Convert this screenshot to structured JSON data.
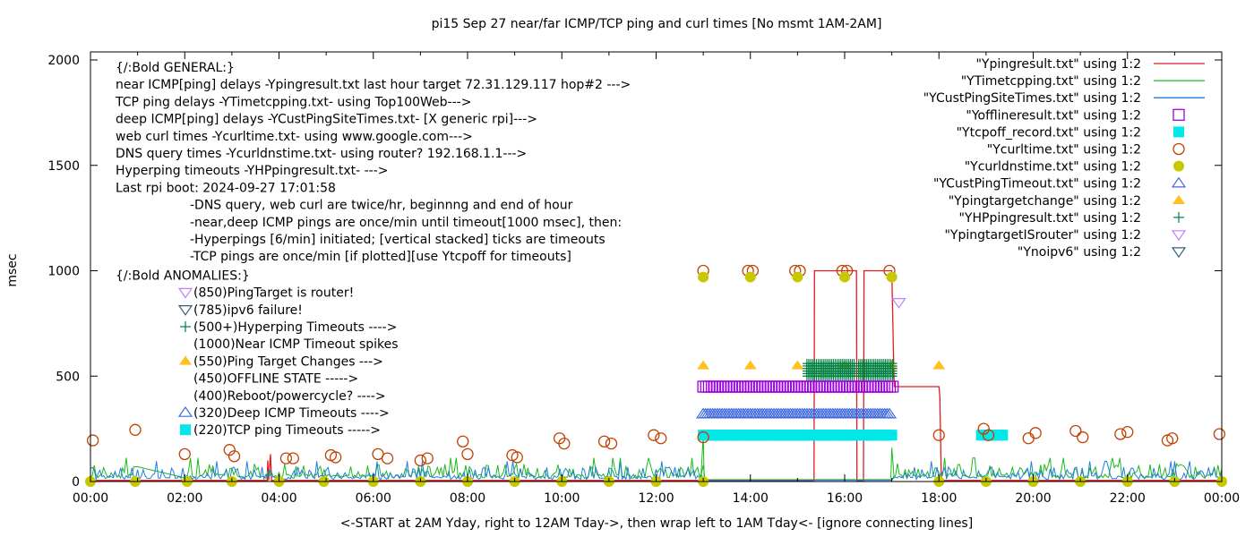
{
  "chart_data": {
    "type": "line",
    "title": "pi15 Sep 27  near/far ICMP/TCP ping and curl times [No msmt 1AM-2AM]",
    "xlabel": "<-START at 2AM Yday, right to 12AM Tday->, then wrap left to 1AM Tday<- [ignore connecting lines]",
    "ylabel": "msec",
    "xlim_hours": [
      0,
      24
    ],
    "ylim": [
      0,
      2000
    ],
    "x_tick_labels": [
      "00:00",
      "02:00",
      "04:00",
      "06:00",
      "08:00",
      "10:00",
      "12:00",
      "14:00",
      "16:00",
      "18:00",
      "20:00",
      "22:00",
      "00:00"
    ],
    "y_ticks": [
      0,
      500,
      1000,
      1500,
      2000
    ],
    "grid": false,
    "legend_position": "top-right",
    "legend": [
      {
        "label": "\"Ypingresult.txt\" using 1:2",
        "style": "line",
        "color": "#e41a1c"
      },
      {
        "label": "\"YTimetcpping.txt\" using 1:2",
        "style": "line",
        "color": "#1db81d"
      },
      {
        "label": "\"YCustPingSiteTimes.txt\" using 1:2",
        "style": "line",
        "color": "#1e7fe0"
      },
      {
        "label": "\"Yofflineresult.txt\" using 1:2",
        "style": "open-square",
        "color": "#a000e6"
      },
      {
        "label": "\"Ytcpoff_record.txt\" using 1:2",
        "style": "filled-square",
        "color": "#00e8e8"
      },
      {
        "label": "\"Ycurltime.txt\" using 1:2",
        "style": "open-circle",
        "color": "#c04000"
      },
      {
        "label": "\"Ycurldnstime.txt\" using 1:2",
        "style": "filled-circle",
        "color": "#c8c800"
      },
      {
        "label": "\"YCustPingTimeout.txt\" using 1:2",
        "style": "open-triangle-up",
        "color": "#4169e1"
      },
      {
        "label": "\"Ypingtargetchange\" using 1:2",
        "style": "filled-triangle-up",
        "color": "#ffc020"
      },
      {
        "label": "\"YHPpingresult.txt\" using 1:2",
        "style": "plus",
        "color": "#008040"
      },
      {
        "label": "\"YpingtargetISrouter\" using 1:2",
        "style": "open-triangle-down",
        "color": "#c080ff"
      },
      {
        "label": "\"Ynoipv6\" using 1:2",
        "style": "open-triangle-down",
        "color": "#306080"
      }
    ],
    "general_notes": [
      "{/:Bold GENERAL:}",
      "near ICMP[ping] delays -Ypingresult.txt last hour target 72.31.129.117 hop#2 --->",
      "TCP ping delays -YTimetcpping.txt- using Top100Web--->",
      "deep ICMP[ping] delays -YCustPingSiteTimes.txt- [X generic rpi]--->",
      "web curl times -Ycurltime.txt- using www.google.com--->",
      "DNS query times -Ycurldnstime.txt- using router? 192.168.1.1--->",
      "Hyperping timeouts -YHPpingresult.txt- --->",
      "Last rpi boot: 2024-09-27 17:01:58"
    ],
    "indented_notes": [
      "-DNS query, web curl are twice/hr, beginnng and end of hour",
      "-near,deep ICMP pings are once/min until timeout[1000 msec], then:",
      " -Hyperpings [6/min] initiated; [vertical stacked] ticks are timeouts",
      "-TCP pings are once/min [if plotted][use Ytcpoff for timeouts]"
    ],
    "anomalies_header": "{/:Bold ANOMALIES:}",
    "anomalies": [
      {
        "marker": "open-triangle-down",
        "color": "#c080ff",
        "text": "(850)PingTarget is router!"
      },
      {
        "marker": "open-triangle-down",
        "color": "#306080",
        "text": "(785)ipv6 failure!"
      },
      {
        "marker": "plus",
        "color": "#008040",
        "text": "(500+)Hyperping Timeouts ---->"
      },
      {
        "marker": "none",
        "color": "",
        "text": "(1000)Near ICMP Timeout spikes"
      },
      {
        "marker": "filled-triangle-up",
        "color": "#ffc020",
        "text": "(550)Ping Target Changes --->"
      },
      {
        "marker": "none",
        "color": "",
        "text": "(450)OFFLINE STATE ----->"
      },
      {
        "marker": "none",
        "color": "",
        "text": "(400)Reboot/powercycle? ---->"
      },
      {
        "marker": "open-triangle-up",
        "color": "#4169e1",
        "text": "(320)Deep ICMP Timeouts ---->"
      },
      {
        "marker": "filled-square",
        "color": "#00e8e8",
        "text": "(220)TCP ping Timeouts ----->"
      }
    ],
    "series": [
      {
        "name": "Ypingresult.txt (near ICMP)",
        "type": "step-line",
        "color": "#e41a1c",
        "points": [
          [
            0,
            5
          ],
          [
            3.75,
            5
          ],
          [
            3.76,
            100
          ],
          [
            3.78,
            5
          ],
          [
            3.82,
            130
          ],
          [
            3.84,
            5
          ],
          [
            15.35,
            5
          ],
          [
            15.36,
            1000
          ],
          [
            16.25,
            1000
          ],
          [
            16.26,
            5
          ],
          [
            16.4,
            5
          ],
          [
            16.41,
            1000
          ],
          [
            17.0,
            1000
          ],
          [
            17.05,
            450
          ],
          [
            18.0,
            450
          ],
          [
            18.02,
            400
          ],
          [
            18.05,
            5
          ],
          [
            24,
            5
          ]
        ]
      },
      {
        "name": "YTimetcpping.txt (TCP ping)",
        "type": "noisy-line",
        "color": "#1db81d",
        "baseline": 15,
        "noise_max": 70,
        "notes": "ramps to ~70 near 01:00 then straight line to 02:00; flat near 10 from 13:00 to 17:00 offline; rises to ~220 at 13:00 and 17:00 edges"
      },
      {
        "name": "YCustPingSiteTimes.txt (deep ICMP)",
        "type": "noisy-line",
        "color": "#1e7fe0",
        "baseline": 10,
        "noise_max": 60,
        "gap_flat_hours": [
          13.0,
          17.0
        ]
      },
      {
        "name": "Yofflineresult.txt",
        "type": "open-square-markers",
        "color": "#a000e6",
        "y": 450,
        "x_range_hours": [
          13.0,
          17.05
        ]
      },
      {
        "name": "Ytcpoff_record.txt",
        "type": "filled-square-markers",
        "color": "#00e8e8",
        "y": 220,
        "x_ranges_hours": [
          [
            13.0,
            17.05
          ],
          [
            18.9,
            19.4
          ]
        ]
      },
      {
        "name": "Ycurltime.txt",
        "type": "open-circle-markers",
        "color": "#c04000",
        "points": [
          [
            0.05,
            195
          ],
          [
            0.95,
            245
          ],
          [
            2.0,
            130
          ],
          [
            2.95,
            150
          ],
          [
            3.05,
            120
          ],
          [
            4.15,
            110
          ],
          [
            4.3,
            110
          ],
          [
            5.1,
            125
          ],
          [
            5.2,
            115
          ],
          [
            6.1,
            130
          ],
          [
            6.3,
            110
          ],
          [
            7.0,
            100
          ],
          [
            7.15,
            110
          ],
          [
            7.9,
            190
          ],
          [
            8.0,
            130
          ],
          [
            8.95,
            125
          ],
          [
            9.05,
            115
          ],
          [
            9.95,
            205
          ],
          [
            10.05,
            180
          ],
          [
            10.9,
            190
          ],
          [
            11.05,
            180
          ],
          [
            11.95,
            220
          ],
          [
            12.1,
            205
          ],
          [
            13.0,
            1000
          ],
          [
            13.0,
            210
          ],
          [
            13.95,
            1000
          ],
          [
            14.05,
            1000
          ],
          [
            14.95,
            1000
          ],
          [
            15.05,
            1000
          ],
          [
            15.95,
            1000
          ],
          [
            16.05,
            1000
          ],
          [
            16.95,
            1000
          ],
          [
            18.0,
            220
          ],
          [
            18.95,
            250
          ],
          [
            19.05,
            220
          ],
          [
            19.9,
            205
          ],
          [
            20.05,
            230
          ],
          [
            20.9,
            240
          ],
          [
            21.05,
            210
          ],
          [
            21.85,
            225
          ],
          [
            22.0,
            235
          ],
          [
            22.85,
            195
          ],
          [
            22.95,
            205
          ],
          [
            23.95,
            225
          ]
        ]
      },
      {
        "name": "Ycurldnstime.txt",
        "type": "filled-circle-markers",
        "color": "#c8c800",
        "points": [
          [
            0,
            0
          ],
          [
            0.95,
            0
          ],
          [
            2.05,
            0
          ],
          [
            3.0,
            0
          ],
          [
            4.0,
            0
          ],
          [
            4.95,
            0
          ],
          [
            6.0,
            0
          ],
          [
            7.0,
            0
          ],
          [
            8.0,
            0
          ],
          [
            9.0,
            0
          ],
          [
            10.0,
            0
          ],
          [
            11.0,
            0
          ],
          [
            12.0,
            0
          ],
          [
            13.0,
            0
          ],
          [
            13.0,
            970
          ],
          [
            14.0,
            970
          ],
          [
            15.0,
            970
          ],
          [
            16.0,
            970
          ],
          [
            17.0,
            970
          ],
          [
            18.0,
            0
          ],
          [
            19.0,
            0
          ],
          [
            20.0,
            0
          ],
          [
            21.0,
            0
          ],
          [
            22.0,
            0
          ],
          [
            23.0,
            0
          ],
          [
            24.0,
            0
          ]
        ]
      },
      {
        "name": "YCustPingTimeout.txt",
        "type": "open-triangle-up-markers",
        "color": "#4169e1",
        "y": 320,
        "x_range_hours": [
          13.0,
          17.0
        ]
      },
      {
        "name": "Ypingtargetchange",
        "type": "filled-triangle-up-markers",
        "color": "#ffc020",
        "points": [
          [
            13.0,
            550
          ],
          [
            14.0,
            550
          ],
          [
            15.0,
            550
          ],
          [
            16.0,
            550
          ],
          [
            17.0,
            550
          ],
          [
            18.0,
            550
          ]
        ]
      },
      {
        "name": "YHPpingresult.txt",
        "type": "plus-markers",
        "color": "#008040",
        "y_range": [
          500,
          560
        ],
        "x_ranges_hours": [
          [
            15.2,
            16.2
          ],
          [
            16.3,
            17.05
          ]
        ]
      },
      {
        "name": "YpingtargetISrouter",
        "type": "open-triangle-down-markers",
        "color": "#c080ff",
        "points": [
          [
            17.15,
            850
          ]
        ]
      },
      {
        "name": "Ynoipv6",
        "type": "open-triangle-down-markers",
        "color": "#306080",
        "points": []
      }
    ]
  }
}
